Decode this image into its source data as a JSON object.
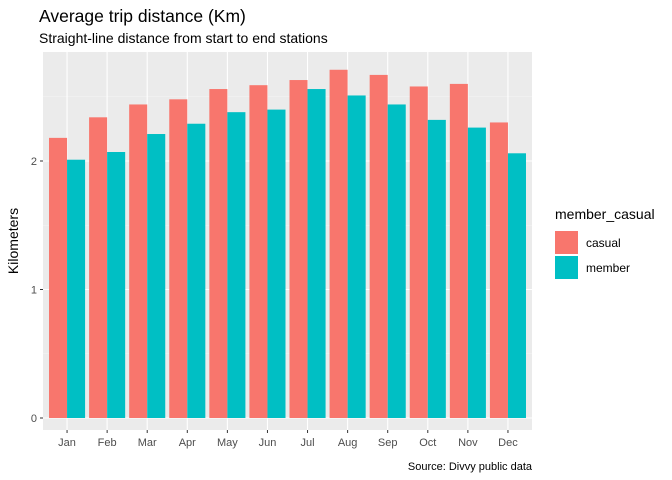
{
  "chart_data": {
    "type": "bar",
    "title": "Average trip distance (Km)",
    "subtitle": "Straight-line distance from start to end stations",
    "caption": "Source: Divvy public data",
    "xlabel": "",
    "ylabel": "Kilometers",
    "ylim": [
      0,
      2.8
    ],
    "yticks": [
      0,
      1,
      2
    ],
    "grid": true,
    "legend": {
      "title": "member_casual",
      "position": "right"
    },
    "categories": [
      "Jan",
      "Feb",
      "Mar",
      "Apr",
      "May",
      "Jun",
      "Jul",
      "Aug",
      "Sep",
      "Oct",
      "Nov",
      "Dec"
    ],
    "series": [
      {
        "name": "casual",
        "color": "#F8766D",
        "values": [
          2.18,
          2.34,
          2.44,
          2.48,
          2.56,
          2.59,
          2.63,
          2.71,
          2.67,
          2.58,
          2.6,
          2.3
        ]
      },
      {
        "name": "member",
        "color": "#00BFC4",
        "values": [
          2.01,
          2.07,
          2.21,
          2.29,
          2.38,
          2.4,
          2.56,
          2.51,
          2.44,
          2.32,
          2.26,
          2.06
        ]
      }
    ]
  }
}
